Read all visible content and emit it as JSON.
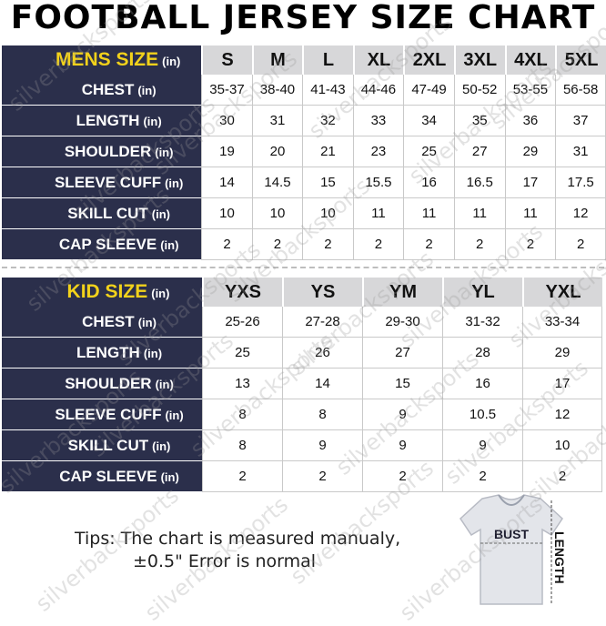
{
  "title": "FOOTBALL JERSEY SIZE CHART",
  "watermark": "silverbacksports",
  "mens": {
    "label": "MENS SIZE",
    "unit": "(in)",
    "sizes": [
      "S",
      "M",
      "L",
      "XL",
      "2XL",
      "3XL",
      "4XL",
      "5XL"
    ],
    "rows": [
      {
        "label": "CHEST",
        "unit": "(in)",
        "values": [
          "35-37",
          "38-40",
          "41-43",
          "44-46",
          "47-49",
          "50-52",
          "53-55",
          "56-58"
        ]
      },
      {
        "label": "LENGTH",
        "unit": "(in)",
        "values": [
          "30",
          "31",
          "32",
          "33",
          "34",
          "35",
          "36",
          "37"
        ]
      },
      {
        "label": "SHOULDER",
        "unit": "(in)",
        "values": [
          "19",
          "20",
          "21",
          "23",
          "25",
          "27",
          "29",
          "31"
        ]
      },
      {
        "label": "SLEEVE CUFF",
        "unit": "(in)",
        "values": [
          "14",
          "14.5",
          "15",
          "15.5",
          "16",
          "16.5",
          "17",
          "17.5"
        ]
      },
      {
        "label": "SKILL CUT",
        "unit": "(in)",
        "values": [
          "10",
          "10",
          "10",
          "11",
          "11",
          "11",
          "11",
          "12"
        ]
      },
      {
        "label": "CAP SLEEVE",
        "unit": "(in)",
        "values": [
          "2",
          "2",
          "2",
          "2",
          "2",
          "2",
          "2",
          "2"
        ]
      }
    ]
  },
  "kids": {
    "label": "KID SIZE",
    "unit": "(in)",
    "sizes": [
      "YXS",
      "YS",
      "YM",
      "YL",
      "YXL"
    ],
    "rows": [
      {
        "label": "CHEST",
        "unit": "(in)",
        "values": [
          "25-26",
          "27-28",
          "29-30",
          "31-32",
          "33-34"
        ]
      },
      {
        "label": "LENGTH",
        "unit": "(in)",
        "values": [
          "25",
          "26",
          "27",
          "28",
          "29"
        ]
      },
      {
        "label": "SHOULDER",
        "unit": "(in)",
        "values": [
          "13",
          "14",
          "15",
          "16",
          "17"
        ]
      },
      {
        "label": "SLEEVE CUFF",
        "unit": "(in)",
        "values": [
          "8",
          "8",
          "9",
          "10.5",
          "12"
        ]
      },
      {
        "label": "SKILL CUT",
        "unit": "(in)",
        "values": [
          "8",
          "9",
          "9",
          "9",
          "10"
        ]
      },
      {
        "label": "CAP SLEEVE",
        "unit": "(in)",
        "values": [
          "2",
          "2",
          "2",
          "2",
          "2"
        ]
      }
    ]
  },
  "tips": {
    "line1": "Tips: The chart is measured manualy,",
    "line2": "±0.5\" Error is normal"
  },
  "diagram": {
    "bust_label": "BUST",
    "length_label": "LENGTH"
  }
}
